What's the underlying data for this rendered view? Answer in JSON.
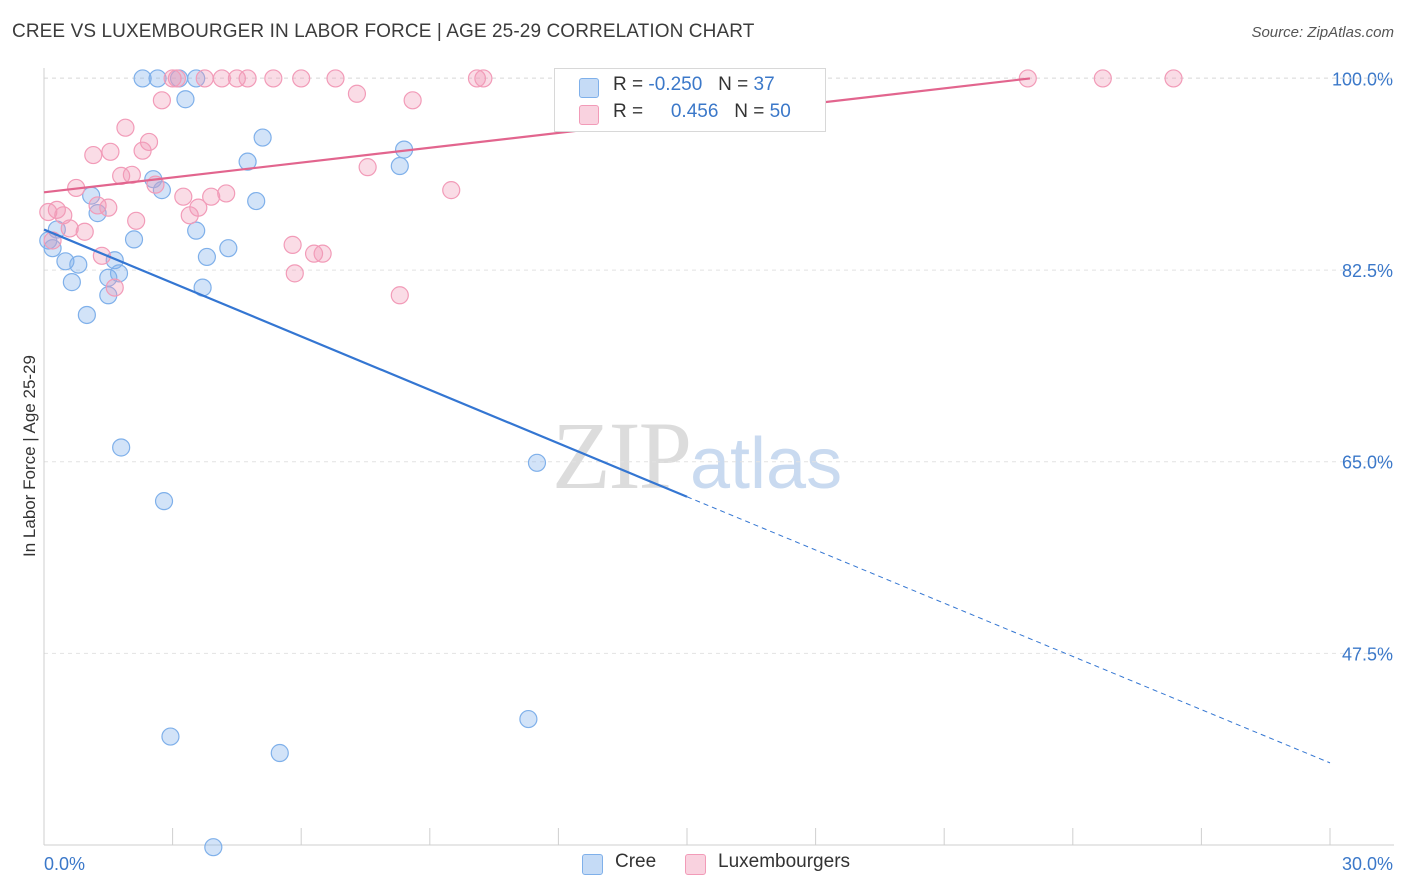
{
  "header": {
    "title": "CREE VS LUXEMBOURGER IN LABOR FORCE | AGE 25-29 CORRELATION CHART",
    "source": "Source: ZipAtlas.com"
  },
  "watermark": {
    "zip": "ZIP",
    "atlas": "atlas"
  },
  "legend": {
    "rows": [
      {
        "r_label": "R =",
        "r_value": "-0.250",
        "n_label": "N =",
        "n_value": "37",
        "color": "#7fb0ea"
      },
      {
        "r_label": "R =",
        "r_value": "0.456",
        "n_label": "N =",
        "n_value": "50",
        "color": "#f29bb8"
      }
    ]
  },
  "bottom_legend": [
    {
      "label": "Cree",
      "color": "#7fb0ea"
    },
    {
      "label": "Luxembourgers",
      "color": "#f29bb8"
    }
  ],
  "chart_data": {
    "type": "scatter",
    "ylabel": "In Labor Force | Age 25-29",
    "xlabel": "",
    "xlim": [
      0,
      30
    ],
    "ylim": [
      30,
      101.5
    ],
    "x_tick_labels": [
      "0.0%",
      "30.0%"
    ],
    "y_ticks": [
      {
        "value": 100,
        "label": "100.0%"
      },
      {
        "value": 82.5,
        "label": "82.5%"
      },
      {
        "value": 65,
        "label": "65.0%"
      },
      {
        "value": 47.5,
        "label": "47.5%"
      }
    ],
    "grid": true,
    "legend_position": "top-center",
    "series": [
      {
        "name": "Cree",
        "color": "#7fb0ea",
        "trend_color": "#3476d2",
        "trend": {
          "x0": 0,
          "y0": 86.2,
          "x1": 15,
          "y1": 61.8,
          "dashed_to_x": 30,
          "dashed_to_y": 37.5
        },
        "points": [
          [
            0.2,
            84.5
          ],
          [
            0.3,
            86.2
          ],
          [
            0.5,
            83.3
          ],
          [
            0.65,
            81.4
          ],
          [
            0.8,
            83.0
          ],
          [
            1.0,
            78.4
          ],
          [
            1.1,
            89.3
          ],
          [
            1.25,
            87.7
          ],
          [
            1.5,
            80.2
          ],
          [
            1.5,
            81.8
          ],
          [
            1.65,
            83.4
          ],
          [
            1.75,
            82.2
          ],
          [
            1.8,
            66.3
          ],
          [
            2.1,
            85.3
          ],
          [
            2.3,
            100.0
          ],
          [
            2.55,
            90.8
          ],
          [
            2.65,
            100.0
          ],
          [
            2.75,
            89.8
          ],
          [
            2.8,
            61.4
          ],
          [
            2.95,
            39.9
          ],
          [
            3.15,
            100.0
          ],
          [
            3.3,
            98.1
          ],
          [
            3.55,
            86.1
          ],
          [
            3.55,
            100.0
          ],
          [
            3.7,
            80.9
          ],
          [
            3.8,
            83.7
          ],
          [
            3.95,
            29.8
          ],
          [
            4.3,
            84.5
          ],
          [
            4.75,
            92.4
          ],
          [
            4.95,
            88.8
          ],
          [
            5.1,
            94.6
          ],
          [
            5.5,
            38.4
          ],
          [
            8.3,
            92.0
          ],
          [
            8.4,
            93.5
          ],
          [
            11.3,
            41.5
          ],
          [
            11.5,
            64.9
          ],
          [
            0.1,
            85.2
          ]
        ]
      },
      {
        "name": "Luxembourgers",
        "color": "#f29bb8",
        "trend_color": "#e2658e",
        "trend": {
          "x0": 0,
          "y0": 89.6,
          "x1": 23,
          "y1": 100.0
        },
        "points": [
          [
            0.1,
            87.8
          ],
          [
            0.2,
            85.2
          ],
          [
            0.3,
            88.0
          ],
          [
            0.45,
            87.5
          ],
          [
            0.6,
            86.3
          ],
          [
            0.75,
            90.0
          ],
          [
            0.95,
            86.0
          ],
          [
            1.15,
            93.0
          ],
          [
            1.25,
            88.4
          ],
          [
            1.35,
            83.8
          ],
          [
            1.5,
            88.2
          ],
          [
            1.55,
            93.3
          ],
          [
            1.65,
            80.9
          ],
          [
            1.8,
            91.1
          ],
          [
            1.9,
            95.5
          ],
          [
            2.05,
            91.2
          ],
          [
            2.15,
            87.0
          ],
          [
            2.3,
            93.4
          ],
          [
            2.45,
            94.2
          ],
          [
            2.6,
            90.3
          ],
          [
            2.75,
            98.0
          ],
          [
            3.0,
            100.0
          ],
          [
            3.1,
            100.0
          ],
          [
            3.25,
            89.2
          ],
          [
            3.4,
            87.5
          ],
          [
            3.6,
            88.2
          ],
          [
            3.75,
            100.0
          ],
          [
            3.9,
            89.2
          ],
          [
            4.15,
            100.0
          ],
          [
            4.25,
            89.5
          ],
          [
            4.5,
            100.0
          ],
          [
            4.75,
            100.0
          ],
          [
            5.35,
            100.0
          ],
          [
            5.8,
            84.8
          ],
          [
            5.85,
            82.2
          ],
          [
            6.0,
            100.0
          ],
          [
            6.3,
            84.0
          ],
          [
            6.5,
            84.0
          ],
          [
            6.8,
            100.0
          ],
          [
            7.3,
            98.6
          ],
          [
            7.55,
            91.9
          ],
          [
            8.3,
            80.2
          ],
          [
            8.6,
            98.0
          ],
          [
            9.5,
            89.8
          ],
          [
            10.1,
            100.0
          ],
          [
            10.25,
            100.0
          ],
          [
            17.0,
            100.0
          ],
          [
            22.95,
            100.0
          ],
          [
            24.7,
            100.0
          ],
          [
            26.35,
            100.0
          ]
        ]
      }
    ]
  }
}
